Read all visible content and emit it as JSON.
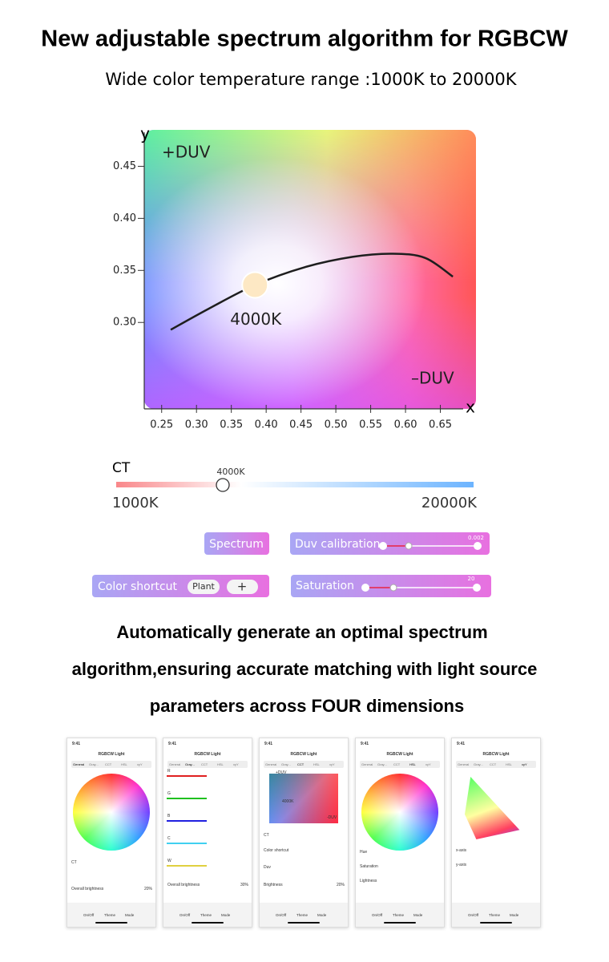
{
  "title": "New adjustable spectrum algorithm for RGBCW",
  "subtitle": "Wide color temperature range :1000K to 20000K",
  "chart_data": {
    "type": "line",
    "y_label": "y",
    "x_label": "x",
    "annotations": [
      "+DUV",
      "–DUV"
    ],
    "x": [
      0.263,
      0.317,
      0.384,
      0.455,
      0.524,
      0.582,
      0.628,
      0.668
    ],
    "values": [
      0.293,
      0.313,
      0.336,
      0.353,
      0.363,
      0.366,
      0.362,
      0.344
    ],
    "color": "#1e1e1e",
    "point": {
      "label": "4000K",
      "x": 0.384,
      "y": 0.336,
      "color": "#fde8c4"
    },
    "xlim": [
      0.225,
      0.7
    ],
    "ylim": [
      0.217,
      0.485
    ],
    "xticks": [
      0.25,
      {
        "value": 0.3,
        "label": "0.30"
      },
      0.35,
      {
        "value": 0.4,
        "label": "0.40"
      },
      0.45,
      {
        "value": 0.5,
        "label": "0.50"
      },
      0.55,
      {
        "value": 0.6,
        "label": "0.60"
      },
      0.65
    ],
    "yticks": [
      {
        "value": 0.3,
        "label": "0.30"
      },
      0.35,
      {
        "value": 0.4,
        "label": "0.40"
      },
      0.45
    ]
  },
  "ct_slider": {
    "title": "CT",
    "marker": "4000K",
    "min_label": "1000K",
    "max_label": "20000K"
  },
  "controls": {
    "spectrum": "Spectrum",
    "duv": "Duv calibration",
    "duv_value": "0.002",
    "shortcut": "Color shortcut",
    "plant": "Plant",
    "add": "+",
    "saturation": "Saturation",
    "saturation_value": "20"
  },
  "description": [
    "Automatically generate an optimal spectrum",
    "algorithm,ensuring accurate matching with light source",
    "parameters across FOUR dimensions"
  ],
  "phone": {
    "time": "9:41",
    "title": "RGBCW Light",
    "tabs": [
      "General",
      "Gray...",
      "CCT",
      "HSL",
      "xyY"
    ],
    "footer": [
      "On/Off",
      "Theme",
      "Mode"
    ]
  },
  "screens": [
    {
      "labels": [
        "CT",
        "Overall brightness",
        "20%"
      ]
    },
    {
      "labels": [
        "R",
        "G",
        "B",
        "C",
        "W",
        "Overall brightness",
        "30%"
      ]
    },
    {
      "labels": [
        "+DUV",
        "4000K",
        "-DUV",
        "CT",
        "Color shortcut",
        "Duv",
        "Brightness",
        "20%"
      ]
    },
    {
      "labels": [
        "Hue",
        "Saturation",
        "Lightness"
      ]
    },
    {
      "labels": [
        "x-axis",
        "y-axis"
      ]
    }
  ]
}
